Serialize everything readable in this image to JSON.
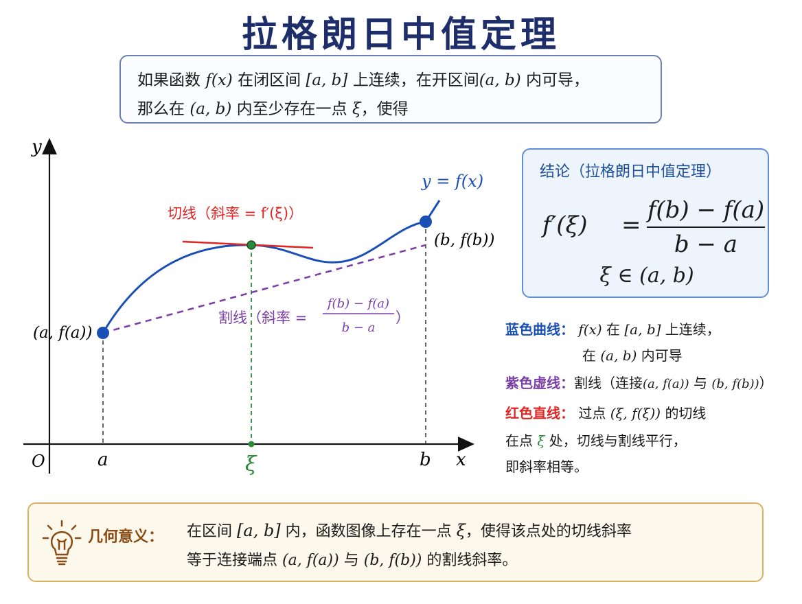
{
  "title": "拉格朗日中值定理",
  "statement": {
    "p1": "如果函数",
    "fx": "f(x)",
    "p2": "在闭区间",
    "closed": "[a, b]",
    "p3": "上连续，在开区间",
    "open": "(a, b)",
    "p4": "内可导，",
    "p5": "那么在",
    "open2": "(a, b)",
    "p6": "内至少存在一点",
    "xi": "ξ",
    "p7": "，使得"
  },
  "graph": {
    "y_axis": "y",
    "x_axis": "x",
    "origin": "O",
    "curve_label": "y = f(x)",
    "point_a": "(a, f(a))",
    "point_b": "(b, f(b))",
    "tick_a": "a",
    "tick_b": "b",
    "tick_xi": "ξ",
    "tangent_label": "切线（斜率 = f′(ξ)）",
    "secant_label": "割线（斜率 =",
    "secant_num": "f(b) − f(a)",
    "secant_den": "b − a",
    "secant_close": "）"
  },
  "conclusion": {
    "title": "结论（拉格朗日中值定理）",
    "lhs": "f′(ξ)",
    "eq": "=",
    "num": "f(b) − f(a)",
    "den": "b − a",
    "range": "ξ ∈ (a, b)"
  },
  "legend": {
    "blue_key": "蓝色曲线：",
    "blue_fx": "f(x)",
    "blue_t1": "在",
    "blue_int": "[a, b]",
    "blue_t2": "上连续，",
    "blue_t3": "在",
    "blue_open": "(a, b)",
    "blue_t4": "内可导",
    "purple_key": "紫色虚线：",
    "purple_t1": "割线（连接",
    "purple_pa": "(a, f(a))",
    "purple_t2": "与",
    "purple_pb": "(b, f(b))",
    "purple_t3": "）",
    "red_key": "红色直线：",
    "red_t1": "过点",
    "red_pt": "(ξ, f(ξ))",
    "red_t2": "的切线",
    "note_t1": "在点",
    "note_xi": "ξ",
    "note_t2": "处，切线与割线平行，",
    "note_t3": "即斜率相等。"
  },
  "meaning": {
    "label": "几何意义：",
    "t1": "在区间",
    "int": "[a, b]",
    "t2": "内，函数图像上存在一点",
    "xi": "ξ",
    "t3": "，使得该点处的切线斜率",
    "t4": "等于连接端点",
    "pa": "(a, f(a))",
    "t5": "与",
    "pb": "(b, f(b))",
    "t6": "的割线斜率。"
  },
  "colors": {
    "title": "#1d2e6b",
    "curve": "#1a4fb5",
    "secant": "#7b3fa8",
    "tangent": "#e02525",
    "xi_green": "#2a8a3a",
    "conclusion_border": "#5d8fd8",
    "meaning_border": "#d8b263"
  },
  "icons": {
    "meaning_icon": "lightbulb-icon"
  }
}
